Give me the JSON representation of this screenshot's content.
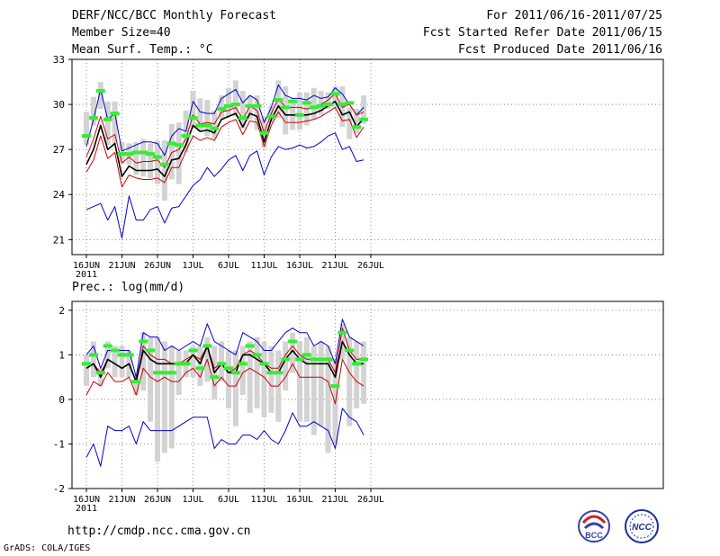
{
  "header": {
    "title": "DERF/NCC/BCC Monthly Forecast",
    "member_size": "Member Size=40",
    "variable": "Mean Surf. Temp.: °C",
    "period": "For 2011/06/16-2011/07/25",
    "fcst_started": "Fcst Started Refer Date 2011/06/15",
    "fcst_produced": "Fcst Produced Date 2011/06/16"
  },
  "footer": {
    "url": "http://cmdp.ncc.cma.gov.cn",
    "credit": "GrADS: COLA/IGES",
    "logo1_text": "BCC",
    "logo2_text": "NCC"
  },
  "colors": {
    "spread": "#d3d3d3",
    "ensemble_mean": "#000000",
    "observed_mark": "#33ee33",
    "bound_line": "#0000cc",
    "std_line": "#cc0000"
  },
  "chart_data": [
    {
      "type": "line",
      "title": "Mean Surf. Temp.: °C",
      "x": [
        "6/16",
        "6/17",
        "6/18",
        "6/19",
        "6/20",
        "6/21",
        "6/22",
        "6/23",
        "6/24",
        "6/25",
        "6/26",
        "6/27",
        "6/28",
        "6/29",
        "6/30",
        "7/1",
        "7/2",
        "7/3",
        "7/4",
        "7/5",
        "7/6",
        "7/7",
        "7/8",
        "7/9",
        "7/10",
        "7/11",
        "7/12",
        "7/13",
        "7/14",
        "7/15",
        "7/16",
        "7/17",
        "7/18",
        "7/19",
        "7/20",
        "7/21",
        "7/22",
        "7/23",
        "7/24",
        "7/25"
      ],
      "xtick_labels": [
        "16JUN",
        "21JUN",
        "26JUN",
        "1JUL",
        "6JUL",
        "11JUL",
        "16JUL",
        "21JUL",
        "26JUL"
      ],
      "year_label": "2011",
      "yticks": [
        21,
        24,
        27,
        30,
        33
      ],
      "ylim": [
        20,
        33
      ],
      "series": [
        {
          "name": "max",
          "values": [
            27.2,
            29.0,
            31.0,
            29.0,
            29.4,
            26.9,
            27.1,
            27.3,
            27.5,
            27.5,
            27.4,
            26.6,
            27.9,
            28.4,
            28.2,
            30.2,
            29.5,
            29.4,
            29.4,
            30.4,
            30.7,
            31.0,
            30.1,
            30.6,
            30.3,
            28.8,
            29.8,
            31.3,
            30.6,
            30.4,
            30.4,
            30.3,
            30.6,
            30.4,
            30.5,
            31.1,
            30.7,
            30.0,
            29.3,
            29.8
          ]
        },
        {
          "name": "upper",
          "values": [
            26.5,
            27.7,
            29.2,
            27.7,
            28.0,
            26.1,
            26.5,
            26.1,
            26.2,
            26.2,
            26.3,
            25.8,
            26.8,
            27.0,
            27.7,
            29.3,
            28.7,
            28.8,
            28.7,
            29.5,
            29.6,
            29.8,
            29.0,
            29.9,
            29.6,
            28.1,
            29.4,
            30.4,
            29.8,
            29.8,
            29.8,
            29.7,
            29.8,
            30.0,
            30.3,
            30.7,
            29.8,
            30.0,
            29.3,
            29.5
          ]
        },
        {
          "name": "mean",
          "values": [
            26.0,
            27.0,
            28.6,
            27.0,
            27.4,
            25.2,
            25.9,
            25.6,
            25.6,
            25.6,
            25.7,
            25.2,
            26.3,
            26.4,
            27.3,
            28.6,
            28.2,
            28.3,
            28.1,
            29.0,
            29.2,
            29.4,
            28.5,
            29.4,
            29.2,
            27.5,
            29.0,
            29.9,
            29.3,
            29.3,
            29.3,
            29.3,
            29.4,
            29.6,
            29.9,
            30.2,
            29.3,
            29.5,
            28.5,
            29.1
          ]
        },
        {
          "name": "lower",
          "values": [
            25.5,
            26.3,
            27.9,
            26.4,
            26.8,
            24.5,
            25.3,
            25.1,
            25.0,
            25.0,
            25.1,
            24.8,
            25.8,
            25.8,
            26.9,
            27.9,
            27.6,
            27.8,
            27.6,
            28.5,
            28.8,
            29.0,
            28.0,
            28.9,
            28.8,
            27.2,
            28.6,
            29.5,
            28.8,
            28.8,
            28.8,
            28.9,
            29.0,
            29.2,
            29.5,
            29.8,
            28.9,
            29.0,
            27.8,
            28.5
          ]
        },
        {
          "name": "min",
          "values": [
            23.0,
            23.2,
            23.4,
            22.3,
            23.2,
            21.1,
            23.9,
            22.3,
            22.3,
            23.0,
            23.2,
            22.1,
            23.1,
            23.2,
            23.9,
            24.6,
            25.0,
            25.8,
            25.2,
            25.7,
            26.3,
            26.6,
            25.6,
            26.6,
            26.9,
            25.3,
            26.5,
            27.2,
            27.0,
            27.1,
            27.3,
            27.1,
            27.2,
            27.5,
            27.9,
            28.1,
            27.0,
            27.2,
            26.2,
            26.3
          ]
        },
        {
          "name": "observed",
          "values": [
            27.9,
            29.1,
            30.9,
            29.0,
            29.4,
            26.7,
            26.7,
            26.8,
            26.8,
            26.7,
            26.5,
            26.0,
            27.4,
            27.3,
            27.9,
            29.1,
            28.6,
            28.6,
            28.4,
            29.7,
            29.9,
            30.0,
            29.1,
            29.9,
            29.9,
            28.1,
            29.2,
            30.3,
            29.8,
            30.2,
            29.3,
            30.1,
            29.8,
            29.9,
            30.0,
            30.7,
            30.0,
            30.1,
            28.5,
            29.0
          ]
        },
        {
          "name": "spread_high",
          "values": [
            29.5,
            30.5,
            31.5,
            30.2,
            30.2,
            27.5,
            27.4,
            27.5,
            27.7,
            27.4,
            27.6,
            27.6,
            28.7,
            28.8,
            29.6,
            30.9,
            30.4,
            30.3,
            29.6,
            30.6,
            31.1,
            31.6,
            30.9,
            30.6,
            30.6,
            29.2,
            29.9,
            31.6,
            31.2,
            30.4,
            30.8,
            30.8,
            31.1,
            30.9,
            30.8,
            31.2,
            31.2,
            29.8,
            29.7,
            30.6
          ]
        },
        {
          "name": "spread_low",
          "values": [
            27.3,
            28.6,
            29.7,
            27.3,
            27.4,
            26.1,
            26.0,
            25.3,
            25.2,
            25.1,
            24.7,
            23.6,
            25.0,
            24.7,
            26.8,
            28.4,
            28.2,
            27.9,
            27.7,
            29.0,
            29.2,
            29.2,
            28.4,
            29.0,
            28.3,
            27.1,
            28.8,
            29.1,
            28.0,
            28.3,
            28.3,
            28.6,
            29.0,
            29.3,
            29.7,
            29.8,
            28.5,
            27.7,
            28.1,
            28.7
          ]
        }
      ]
    },
    {
      "type": "line",
      "title": "Prec.: log(mm/d)",
      "x": [
        "6/16",
        "6/17",
        "6/18",
        "6/19",
        "6/20",
        "6/21",
        "6/22",
        "6/23",
        "6/24",
        "6/25",
        "6/26",
        "6/27",
        "6/28",
        "6/29",
        "6/30",
        "7/1",
        "7/2",
        "7/3",
        "7/4",
        "7/5",
        "7/6",
        "7/7",
        "7/8",
        "7/9",
        "7/10",
        "7/11",
        "7/12",
        "7/13",
        "7/14",
        "7/15",
        "7/16",
        "7/17",
        "7/18",
        "7/19",
        "7/20",
        "7/21",
        "7/22",
        "7/23",
        "7/24",
        "7/25"
      ],
      "xtick_labels": [
        "16JUN",
        "21JUN",
        "26JUN",
        "1JUL",
        "6JUL",
        "11JUL",
        "16JUL",
        "21JUL",
        "26JUL"
      ],
      "year_label": "2011",
      "yticks": [
        -2,
        -1,
        0,
        1,
        2
      ],
      "ylim": [
        -2,
        2.2
      ],
      "series": [
        {
          "name": "max",
          "values": [
            1.0,
            1.2,
            0.7,
            1.1,
            1.1,
            1.1,
            1.1,
            0.5,
            1.5,
            1.4,
            1.4,
            1.1,
            1.2,
            1.1,
            1.2,
            1.3,
            1.2,
            1.7,
            1.3,
            1.2,
            1.1,
            1.0,
            1.5,
            1.4,
            1.3,
            1.1,
            1.1,
            1.3,
            1.5,
            1.6,
            1.5,
            1.5,
            1.2,
            1.3,
            1.2,
            0.8,
            1.8,
            1.4,
            1.3,
            1.2
          ]
        },
        {
          "name": "upper",
          "values": [
            0.7,
            0.8,
            0.6,
            0.9,
            0.8,
            0.7,
            0.8,
            0.4,
            1.2,
            1.0,
            0.9,
            0.9,
            0.8,
            0.8,
            0.9,
            1.0,
            0.9,
            1.2,
            0.7,
            0.8,
            0.6,
            0.7,
            1.0,
            1.1,
            1.0,
            0.8,
            0.7,
            0.7,
            1.0,
            1.2,
            1.0,
            0.9,
            0.9,
            0.9,
            0.9,
            0.6,
            1.6,
            1.1,
            0.9,
            0.9
          ]
        },
        {
          "name": "mean",
          "values": [
            0.7,
            0.8,
            0.5,
            0.9,
            0.8,
            0.7,
            0.8,
            0.4,
            1.1,
            0.9,
            0.8,
            0.8,
            0.8,
            0.8,
            0.8,
            1.0,
            0.8,
            1.2,
            0.6,
            0.8,
            0.6,
            0.6,
            1.0,
            1.0,
            0.9,
            0.8,
            0.6,
            0.6,
            0.9,
            1.1,
            0.9,
            0.8,
            0.8,
            0.8,
            0.8,
            0.5,
            1.3,
            1.0,
            0.8,
            0.8
          ]
        },
        {
          "name": "lower",
          "values": [
            0.1,
            0.4,
            0.3,
            0.6,
            0.4,
            0.4,
            0.5,
            0.1,
            0.7,
            0.5,
            0.4,
            0.5,
            0.4,
            0.4,
            0.6,
            0.7,
            0.5,
            0.9,
            0.3,
            0.5,
            0.3,
            0.3,
            0.6,
            0.7,
            0.6,
            0.5,
            0.3,
            0.3,
            0.5,
            0.8,
            0.5,
            0.5,
            0.5,
            0.5,
            0.4,
            -0.1,
            0.9,
            0.6,
            0.4,
            0.3
          ]
        },
        {
          "name": "min",
          "values": [
            -1.3,
            -1.0,
            -1.5,
            -0.6,
            -0.7,
            -0.7,
            -0.6,
            -1.0,
            -0.5,
            -0.7,
            -0.7,
            -0.7,
            -0.7,
            -0.6,
            -0.5,
            -0.4,
            -0.4,
            -0.4,
            -1.1,
            -0.9,
            -1.0,
            -1.0,
            -0.8,
            -0.8,
            -0.9,
            -0.7,
            -0.9,
            -1.0,
            -0.7,
            -0.3,
            -0.6,
            -0.6,
            -0.5,
            -0.6,
            -0.7,
            -1.1,
            -0.2,
            -0.4,
            -0.5,
            -0.8
          ]
        },
        {
          "name": "observed",
          "values": [
            0.8,
            1.0,
            0.6,
            1.2,
            1.1,
            1.0,
            1.0,
            0.4,
            1.3,
            1.1,
            0.6,
            0.6,
            0.6,
            0.8,
            0.8,
            1.1,
            0.7,
            1.2,
            0.5,
            0.8,
            0.7,
            0.6,
            0.8,
            1.2,
            1.0,
            0.8,
            0.6,
            0.6,
            0.9,
            1.3,
            0.9,
            1.0,
            0.9,
            0.9,
            0.9,
            0.3,
            1.5,
            1.1,
            0.8,
            0.9
          ]
        },
        {
          "name": "spread_high",
          "values": [
            1.0,
            1.3,
            0.7,
            1.3,
            1.2,
            1.2,
            1.1,
            0.5,
            1.5,
            1.4,
            1.4,
            1.3,
            1.2,
            1.1,
            1.1,
            1.2,
            1.2,
            1.4,
            1.2,
            1.3,
            1.1,
            1.1,
            1.2,
            1.3,
            1.4,
            1.3,
            1.2,
            1.1,
            1.3,
            1.5,
            1.3,
            1.4,
            1.2,
            1.3,
            1.2,
            0.9,
            1.7,
            1.4,
            1.3,
            1.3
          ]
        },
        {
          "name": "spread_low",
          "values": [
            0.3,
            0.5,
            0.3,
            0.7,
            0.5,
            0.5,
            0.5,
            0.1,
            0.2,
            -0.5,
            -1.4,
            -1.2,
            -1.1,
            0.1,
            0.5,
            0.5,
            0.3,
            0.4,
            0.0,
            0.4,
            -0.2,
            -0.6,
            0.1,
            -0.3,
            -0.2,
            -0.4,
            -0.3,
            -0.5,
            0.2,
            0.6,
            -0.5,
            -0.5,
            -0.8,
            -0.6,
            -1.2,
            -1.0,
            0.9,
            -0.6,
            -0.2,
            -0.1
          ]
        }
      ]
    }
  ]
}
